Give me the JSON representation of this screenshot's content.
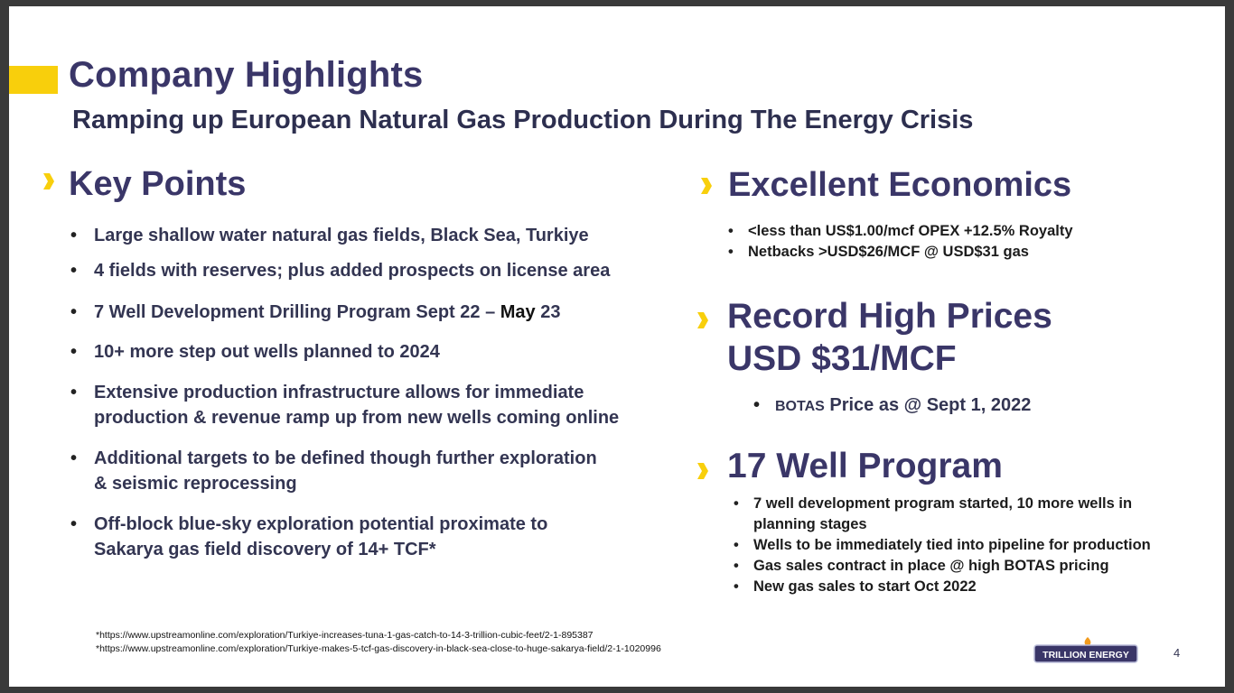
{
  "slide": {
    "title": "Company Highlights",
    "subtitle": "Ramping up European Natural Gas Production During The Energy Crisis",
    "colors": {
      "accent": "#f8cf0c",
      "heading": "#3a3668",
      "text": "#333552"
    }
  },
  "key_points": {
    "heading": "Key Points",
    "marker_icon": "chevron-marker-icon",
    "items": [
      {
        "line1": "Large shallow water natural gas fields, Black Sea, Turkiye"
      },
      {
        "line1": "4 fields with reserves; plus added prospects on license area"
      },
      {
        "line1_a": "7 Well Development Drilling Program Sept 22 – ",
        "line1_b": "May",
        "line1_c": " 23"
      },
      {
        "line1": "10+ more step out wells planned to 2024"
      },
      {
        "line1": "Extensive production infrastructure allows for immediate",
        "line2": "production & revenue ramp up from new wells coming online"
      },
      {
        "line1": "Additional targets to be defined though further exploration",
        "line2": "& seismic reprocessing"
      },
      {
        "line1": "Off-block blue-sky exploration potential proximate to",
        "line2": "Sakarya gas field discovery of 14+ TCF*"
      }
    ]
  },
  "economics": {
    "heading": "Excellent Economics",
    "items": [
      "<less than US$1.00/mcf OPEX +12.5% Royalty",
      "Netbacks >USD$26/MCF @ USD$31 gas"
    ]
  },
  "prices": {
    "heading_line1": "Record High Prices",
    "heading_line2": "USD $31/MCF",
    "item_prefix": "BOTAS",
    "item_rest": " Price as @ Sept 1, 2022"
  },
  "program": {
    "heading": "17 Well Program",
    "items": [
      {
        "line1": "7 well development program started, 10 more wells in",
        "line2": "planning stages"
      },
      {
        "line1": "Wells to be immediately tied into pipeline for production"
      },
      {
        "line1": "Gas sales contract in place @ high BOTAS pricing"
      },
      {
        "line1": "New gas sales to start Oct 2022"
      }
    ]
  },
  "footnotes": [
    "*https://www.upstreamonline.com/exploration/Turkiye-increases-tuna-1-gas-catch-to-14-3-trillion-cubic-feet/2-1-895387",
    "*https://www.upstreamonline.com/exploration/Turkiye-makes-5-tcf-gas-discovery-in-black-sea-close-to-huge-sakarya-field/2-1-1020996"
  ],
  "logo": {
    "text": "TRILLION ENERGY",
    "icon": "flame-icon"
  },
  "page_number": "4"
}
